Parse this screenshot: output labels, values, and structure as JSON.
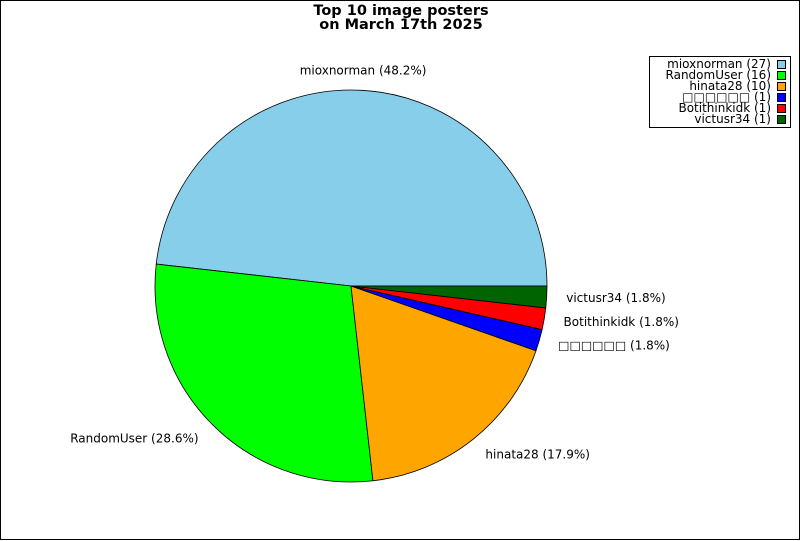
{
  "chart_data": {
    "type": "pie",
    "title": "Top 10 image posters\non March 17th 2025",
    "slices": [
      {
        "name": "mioxnorman",
        "count": 27,
        "percent": 48.2,
        "color": "#87ceeb",
        "label": "mioxnorman (48.2%)",
        "legend": "mioxnorman (27)"
      },
      {
        "name": "RandomUser",
        "count": 16,
        "percent": 28.6,
        "color": "#00ff00",
        "label": "RandomUser (28.6%)",
        "legend": "RandomUser (16)"
      },
      {
        "name": "hinata28",
        "count": 10,
        "percent": 17.9,
        "color": "#ffa500",
        "label": "hinata28 (17.9%)",
        "legend": "hinata28 (10)"
      },
      {
        "name": "□□□□□□",
        "count": 1,
        "percent": 1.8,
        "color": "#0000ff",
        "label": "□□□□□□ (1.8%)",
        "legend": "□□□□□□ (1)"
      },
      {
        "name": "Botithinkidk",
        "count": 1,
        "percent": 1.8,
        "color": "#ff0000",
        "label": "Botithinkidk (1.8%)",
        "legend": "Botithinkidk (1)"
      },
      {
        "name": "victusr34",
        "count": 1,
        "percent": 1.8,
        "color": "#006400",
        "label": "victusr34 (1.8%)",
        "legend": "victusr34 (1)"
      }
    ],
    "legend_position": "top-right"
  }
}
